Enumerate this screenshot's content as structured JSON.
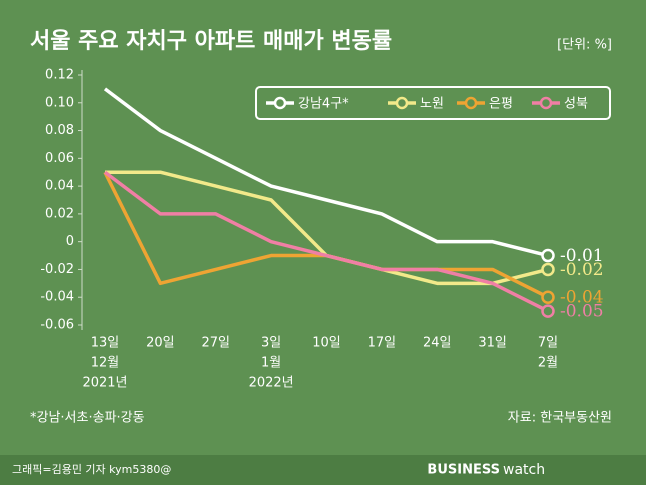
{
  "chart_data": {
    "type": "line",
    "title": "서울 주요 자치구 아파트 매매가 변동률",
    "unit": "[단위: %]",
    "categories": [
      [
        "13일",
        "12월",
        "2021년"
      ],
      [
        "20일"
      ],
      [
        "27일"
      ],
      [
        "3일",
        "1월",
        "2022년"
      ],
      [
        "10일"
      ],
      [
        "17일"
      ],
      [
        "24일"
      ],
      [
        "31일"
      ],
      [
        "7일",
        "2월"
      ]
    ],
    "series": [
      {
        "name": "강남4구*",
        "color": "#ffffff",
        "values": [
          0.11,
          0.08,
          0.06,
          0.04,
          0.03,
          0.02,
          0,
          0,
          -0.01
        ]
      },
      {
        "name": "노원",
        "color": "#f2e98a",
        "values": [
          0.05,
          0.05,
          0.04,
          0.03,
          -0.01,
          -0.02,
          -0.03,
          -0.03,
          -0.02
        ]
      },
      {
        "name": "은평",
        "color": "#eea433",
        "values": [
          0.05,
          -0.03,
          -0.02,
          -0.01,
          -0.01,
          -0.02,
          -0.02,
          -0.02,
          -0.04
        ]
      },
      {
        "name": "성북",
        "color": "#f07fa5",
        "values": [
          0.05,
          0.02,
          0.02,
          0,
          -0.01,
          -0.02,
          -0.02,
          -0.03,
          -0.05
        ]
      }
    ],
    "ylim": [
      -0.06,
      0.12
    ],
    "yticks": [
      -0.06,
      -0.04,
      -0.02,
      0,
      0.02,
      0.04,
      0.06,
      0.08,
      {
        "value": 0.1,
        "label": "0.10"
      },
      0.12
    ],
    "grid": false,
    "legend": "top-right",
    "footnote": "*강남·서초·송파·강동",
    "source": "자료: 한국부동산원",
    "credit": "그래픽=김용민 기자 kym5380@",
    "logo": [
      "BUSINESS",
      "watch"
    ]
  }
}
